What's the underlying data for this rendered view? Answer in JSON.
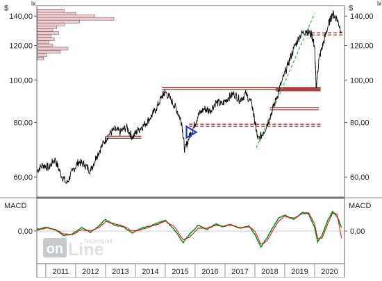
{
  "chart_data": [
    {
      "type": "line",
      "title": "",
      "currency_label": "$",
      "corner_marks": [
        "lx",
        "lx"
      ],
      "x_ticks": [
        "2011",
        "2012",
        "2013",
        "2014",
        "2015",
        "2016",
        "2017",
        "2018",
        "2019",
        "2020"
      ],
      "xlim": [
        2010.7,
        2021.0
      ],
      "yscale": "log",
      "ylim": [
        54,
        148
      ],
      "y_ticks": [
        {
          "value": 60,
          "label": "60,00"
        },
        {
          "value": 80,
          "label": "80,00"
        },
        {
          "value": 100,
          "label": "100,00"
        },
        {
          "value": 120,
          "label": "120,00"
        },
        {
          "value": 140,
          "label": "140,00"
        }
      ],
      "series": [
        {
          "color": "#000000",
          "points": [
            [
              2010.7,
              62
            ],
            [
              2010.9,
              64
            ],
            [
              2011.1,
              63
            ],
            [
              2011.3,
              66
            ],
            [
              2011.5,
              61
            ],
            [
              2011.7,
              58
            ],
            [
              2011.9,
              62
            ],
            [
              2012.1,
              65
            ],
            [
              2012.3,
              64
            ],
            [
              2012.5,
              62
            ],
            [
              2012.7,
              67
            ],
            [
              2012.9,
              71
            ],
            [
              2013.1,
              75
            ],
            [
              2013.3,
              77
            ],
            [
              2013.5,
              76
            ],
            [
              2013.7,
              78
            ],
            [
              2013.9,
              74
            ],
            [
              2014.1,
              77
            ],
            [
              2014.3,
              79
            ],
            [
              2014.5,
              82
            ],
            [
              2014.7,
              86
            ],
            [
              2014.9,
              92
            ],
            [
              2015.0,
              94
            ],
            [
              2015.2,
              90
            ],
            [
              2015.4,
              85
            ],
            [
              2015.55,
              80
            ],
            [
              2015.65,
              69
            ],
            [
              2015.8,
              74
            ],
            [
              2015.95,
              78
            ],
            [
              2016.1,
              83
            ],
            [
              2016.3,
              86
            ],
            [
              2016.5,
              85
            ],
            [
              2016.7,
              89
            ],
            [
              2016.9,
              88
            ],
            [
              2017.1,
              91
            ],
            [
              2017.3,
              93
            ],
            [
              2017.5,
              90
            ],
            [
              2017.7,
              93
            ],
            [
              2017.9,
              88
            ],
            [
              2018.0,
              80
            ],
            [
              2018.1,
              73
            ],
            [
              2018.3,
              76
            ],
            [
              2018.5,
              82
            ],
            [
              2018.7,
              90
            ],
            [
              2018.9,
              99
            ],
            [
              2019.1,
              108
            ],
            [
              2019.3,
              118
            ],
            [
              2019.5,
              126
            ],
            [
              2019.7,
              130
            ],
            [
              2019.9,
              127
            ],
            [
              2020.0,
              119
            ],
            [
              2020.05,
              96
            ],
            [
              2020.15,
              112
            ],
            [
              2020.3,
              122
            ],
            [
              2020.45,
              133
            ],
            [
              2020.6,
              142
            ],
            [
              2020.75,
              138
            ],
            [
              2020.9,
              129
            ]
          ]
        }
      ],
      "support_levels": [
        {
          "y": 95.5,
          "x": [
            2014.9,
            2020.2
          ],
          "color": "#8b0000",
          "style": "double"
        },
        {
          "y": 95.0,
          "x": [
            2018.7,
            2020.2
          ],
          "color": "#8b0000",
          "style": "double"
        },
        {
          "y": 86.0,
          "x": [
            2018.5,
            2020.15
          ],
          "color": "#8b0000",
          "style": "double"
        },
        {
          "y": 78.8,
          "x": [
            2015.8,
            2020.2
          ],
          "color": "#8b0000",
          "style": "dashed"
        },
        {
          "y": 74.0,
          "x": [
            2013.0,
            2014.2
          ],
          "color": "#8b0000",
          "style": "double"
        },
        {
          "y": 127.5,
          "x": [
            2019.7,
            2020.95
          ],
          "color": "#8b0000",
          "style": "dashed"
        }
      ],
      "trend_channel": {
        "from": [
          2018.05,
          70
        ],
        "to": [
          2020.0,
          142
        ],
        "color": "#3cb43c"
      },
      "marker": {
        "x": 2015.85,
        "y": 76,
        "shape": "triangle",
        "color": "#1e3cc8"
      },
      "volume_profile": {
        "color": "#f2c9cc",
        "edge": "#555555",
        "bins": [
          {
            "y": 144,
            "value": 0.35
          },
          {
            "y": 142,
            "value": 0.5
          },
          {
            "y": 140,
            "value": 0.75
          },
          {
            "y": 138,
            "value": 1.0
          },
          {
            "y": 136,
            "value": 0.55
          },
          {
            "y": 134,
            "value": 0.35
          },
          {
            "y": 132,
            "value": 0.25
          },
          {
            "y": 130,
            "value": 0.2
          },
          {
            "y": 128,
            "value": 0.28
          },
          {
            "y": 126,
            "value": 0.18
          },
          {
            "y": 124,
            "value": 0.22
          },
          {
            "y": 122,
            "value": 0.15
          },
          {
            "y": 120,
            "value": 0.2
          },
          {
            "y": 118,
            "value": 0.4
          },
          {
            "y": 116,
            "value": 0.3
          },
          {
            "y": 114,
            "value": 0.12
          },
          {
            "y": 112,
            "value": 0.08
          }
        ]
      }
    },
    {
      "type": "line",
      "title": "MACD",
      "y_ticks": [
        {
          "value": 0,
          "label": "0,00"
        }
      ],
      "ylim": [
        -4.5,
        4.5
      ],
      "xlim": [
        2010.7,
        2021.0
      ],
      "series": [
        {
          "color": "#1a8a1a",
          "points": [
            [
              2010.7,
              0.2
            ],
            [
              2011.0,
              0.5
            ],
            [
              2011.3,
              0.2
            ],
            [
              2011.6,
              -0.6
            ],
            [
              2011.9,
              -0.4
            ],
            [
              2012.2,
              0.5
            ],
            [
              2012.5,
              -0.2
            ],
            [
              2012.8,
              0.8
            ],
            [
              2013.0,
              1.6
            ],
            [
              2013.3,
              0.8
            ],
            [
              2013.6,
              0.6
            ],
            [
              2013.9,
              -0.3
            ],
            [
              2014.2,
              0.4
            ],
            [
              2014.5,
              0.7
            ],
            [
              2014.8,
              1.2
            ],
            [
              2015.0,
              1.5
            ],
            [
              2015.3,
              0.2
            ],
            [
              2015.6,
              -1.6
            ],
            [
              2015.8,
              -0.5
            ],
            [
              2016.1,
              0.8
            ],
            [
              2016.4,
              0.2
            ],
            [
              2016.7,
              1.0
            ],
            [
              2016.9,
              0.6
            ],
            [
              2017.2,
              0.9
            ],
            [
              2017.5,
              0.4
            ],
            [
              2017.8,
              0.7
            ],
            [
              2018.0,
              -0.5
            ],
            [
              2018.2,
              -2.2
            ],
            [
              2018.4,
              -1.0
            ],
            [
              2018.6,
              0.5
            ],
            [
              2018.8,
              1.8
            ],
            [
              2019.0,
              2.2
            ],
            [
              2019.3,
              1.6
            ],
            [
              2019.6,
              2.6
            ],
            [
              2019.8,
              2.4
            ],
            [
              2020.0,
              0.5
            ],
            [
              2020.1,
              -1.5
            ],
            [
              2020.25,
              -0.6
            ],
            [
              2020.45,
              1.6
            ],
            [
              2020.6,
              2.7
            ],
            [
              2020.75,
              2.0
            ],
            [
              2020.9,
              0.5
            ]
          ]
        },
        {
          "color": "#d01010",
          "points": [
            [
              2010.7,
              0.1
            ],
            [
              2011.0,
              0.4
            ],
            [
              2011.3,
              0.25
            ],
            [
              2011.6,
              -0.4
            ],
            [
              2011.9,
              -0.5
            ],
            [
              2012.2,
              0.2
            ],
            [
              2012.5,
              0.0
            ],
            [
              2012.8,
              0.5
            ],
            [
              2013.0,
              1.3
            ],
            [
              2013.3,
              1.0
            ],
            [
              2013.6,
              0.7
            ],
            [
              2013.9,
              0.0
            ],
            [
              2014.2,
              0.2
            ],
            [
              2014.5,
              0.6
            ],
            [
              2014.8,
              1.0
            ],
            [
              2015.0,
              1.4
            ],
            [
              2015.3,
              0.6
            ],
            [
              2015.6,
              -1.2
            ],
            [
              2015.8,
              -0.9
            ],
            [
              2016.1,
              0.4
            ],
            [
              2016.4,
              0.4
            ],
            [
              2016.7,
              0.8
            ],
            [
              2016.9,
              0.7
            ],
            [
              2017.2,
              0.8
            ],
            [
              2017.5,
              0.5
            ],
            [
              2017.8,
              0.6
            ],
            [
              2018.0,
              0.0
            ],
            [
              2018.2,
              -1.8
            ],
            [
              2018.4,
              -1.4
            ],
            [
              2018.6,
              0.1
            ],
            [
              2018.8,
              1.4
            ],
            [
              2019.0,
              2.0
            ],
            [
              2019.3,
              1.8
            ],
            [
              2019.6,
              2.4
            ],
            [
              2019.8,
              2.5
            ],
            [
              2020.0,
              1.0
            ],
            [
              2020.1,
              -1.0
            ],
            [
              2020.25,
              -1.0
            ],
            [
              2020.45,
              1.1
            ],
            [
              2020.6,
              2.5
            ],
            [
              2020.75,
              2.3
            ],
            [
              2020.9,
              -1.0
            ]
          ]
        }
      ]
    }
  ],
  "watermark": {
    "small": "Tradesignal",
    "big_left": "on",
    "big_right": "Line"
  }
}
